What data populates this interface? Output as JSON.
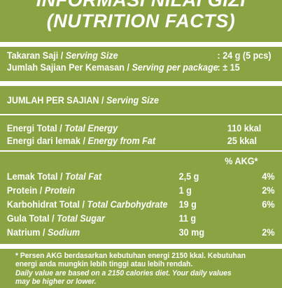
{
  "header": {
    "title_line1": "INFORMASI NILAI GIZI",
    "title_line2": "(NUTRITION FACTS)"
  },
  "serving": {
    "size_label_id": "Takaran Saji / ",
    "size_label_en": "Serving Size",
    "size_value": ": 24 g (5 pcs)",
    "per_package_label_id": "Jumlah Sajian Per Kemasan / ",
    "per_package_label_en": "Serving per package",
    "per_package_value": ": ± 15"
  },
  "per_serving_header": {
    "label_id": "JUMLAH PER SAJIAN / ",
    "label_en": "Serving Size"
  },
  "energy": [
    {
      "label_id": "Energi Total / ",
      "label_en": "Total Energy",
      "value": "110 kkal"
    },
    {
      "label_id": "Energi dari lemak / ",
      "label_en": "Energy from Fat",
      "value": "25 kkal"
    }
  ],
  "akg_header": "% AKG*",
  "nutrients": [
    {
      "label_id": "Lemak Total / ",
      "label_en": "Total Fat",
      "amount": "2,5 g",
      "akg": "4%"
    },
    {
      "label_id": "Protein / ",
      "label_en": "Protein",
      "amount": "1 g",
      "akg": "2%"
    },
    {
      "label_id": "Karbohidrat Total / ",
      "label_en": "Total Carbohydrate",
      "amount": "19 g",
      "akg": "6%"
    },
    {
      "label_id": "Gula Total / ",
      "label_en": "Total Sugar",
      "amount": "11 g",
      "akg": ""
    },
    {
      "label_id": "Natrium / ",
      "label_en": "Sodium",
      "amount": "30 mg",
      "akg": "2%"
    }
  ],
  "footnote": {
    "line1": "* Persen AKG berdasarkan kebutuhan energi 2150 kkal. Kebutuhan",
    "line2": "energi anda mungkin lebih tinggi atau lebih rendah.",
    "line3": "Daily value are based on a 2150 calories diet. Your daily values",
    "line4": "may be higher or lower."
  },
  "colors": {
    "background": "#8aa444",
    "text": "#ffffff"
  }
}
